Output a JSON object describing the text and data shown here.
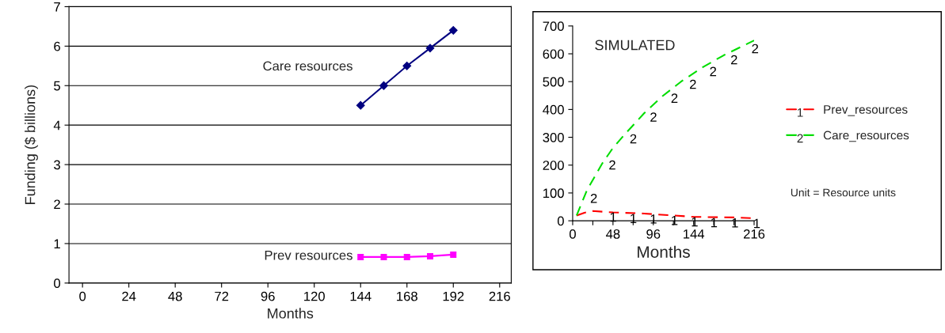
{
  "chart_data": [
    {
      "type": "line",
      "xlabel": "Months",
      "ylabel": "Funding ($ billions)",
      "x": [
        144,
        156,
        168,
        180,
        192
      ],
      "series": [
        {
          "name": "Care resources",
          "color": "#000080",
          "marker": "diamond",
          "values": [
            4.5,
            5.0,
            5.5,
            5.95,
            6.4
          ]
        },
        {
          "name": "Prev resources",
          "color": "#ff00ff",
          "marker": "square",
          "values": [
            0.66,
            0.66,
            0.66,
            0.68,
            0.72
          ]
        }
      ],
      "xlim": [
        -7,
        222
      ],
      "xticks": [
        0,
        24,
        48,
        72,
        96,
        120,
        144,
        168,
        192,
        216
      ],
      "ylim": [
        0,
        7
      ],
      "yticks": [
        0,
        1,
        2,
        3,
        4,
        5,
        6,
        7
      ],
      "grid": "y",
      "legend": false
    },
    {
      "type": "line",
      "title": "SIMULATED",
      "xlabel": "Months",
      "series": [
        {
          "name": "Prev_resources",
          "color": "#ff0000",
          "line_style": "dashed",
          "x": [
            4.7,
            14,
            24,
            48,
            85,
            120,
            145,
            192,
            216
          ],
          "values": [
            19,
            29,
            35,
            30,
            26,
            19,
            14,
            12,
            9
          ]
        },
        {
          "name": "Care_resources",
          "color": "#00dd00",
          "line_style": "dashed",
          "x": [
            4.7,
            17,
            35,
            48,
            63,
            85,
            107,
            129,
            155,
            180,
            216
          ],
          "values": [
            19,
            110,
            205,
            262,
            314,
            386,
            448,
            500,
            552,
            595,
            648
          ]
        }
      ],
      "xlim": [
        0,
        216
      ],
      "xticks": [
        0,
        {
          "value": 24,
          "label": null
        },
        48,
        {
          "value": 72,
          "label": null
        },
        96,
        {
          "value": 120,
          "label": null
        },
        144,
        {
          "value": 168,
          "label": null
        },
        {
          "value": 192,
          "label": null
        },
        216
      ],
      "ylim": [
        0,
        700
      ],
      "yticks": [
        0,
        100,
        200,
        300,
        400,
        500,
        600,
        700
      ],
      "grid": false,
      "legend": "right",
      "annotations": [
        {
          "text": "2",
          "x": 16,
          "y": 100
        },
        {
          "text": "2",
          "x": 38,
          "y": 220
        },
        {
          "text": "2",
          "x": 63,
          "y": 314
        },
        {
          "text": "2",
          "x": 87,
          "y": 392
        },
        {
          "text": "2",
          "x": 112,
          "y": 460
        },
        {
          "text": "2",
          "x": 134,
          "y": 510
        },
        {
          "text": "2",
          "x": 158,
          "y": 556
        },
        {
          "text": "2",
          "x": 183,
          "y": 598
        },
        {
          "text": "2",
          "x": 208,
          "y": 638
        },
        {
          "text": "1",
          "x": 39,
          "y": 33
        },
        {
          "text": "1",
          "x": 63,
          "y": 28
        },
        {
          "text": "1",
          "x": 87,
          "y": 26
        },
        {
          "text": "1",
          "x": 112,
          "y": 21
        },
        {
          "text": "1",
          "x": 136,
          "y": 16
        },
        {
          "text": "1",
          "x": 159,
          "y": 13
        },
        {
          "text": "1",
          "x": 184,
          "y": 12
        },
        {
          "text": "1",
          "x": 210,
          "y": 10
        },
        "Unit = Resource units"
      ]
    }
  ]
}
